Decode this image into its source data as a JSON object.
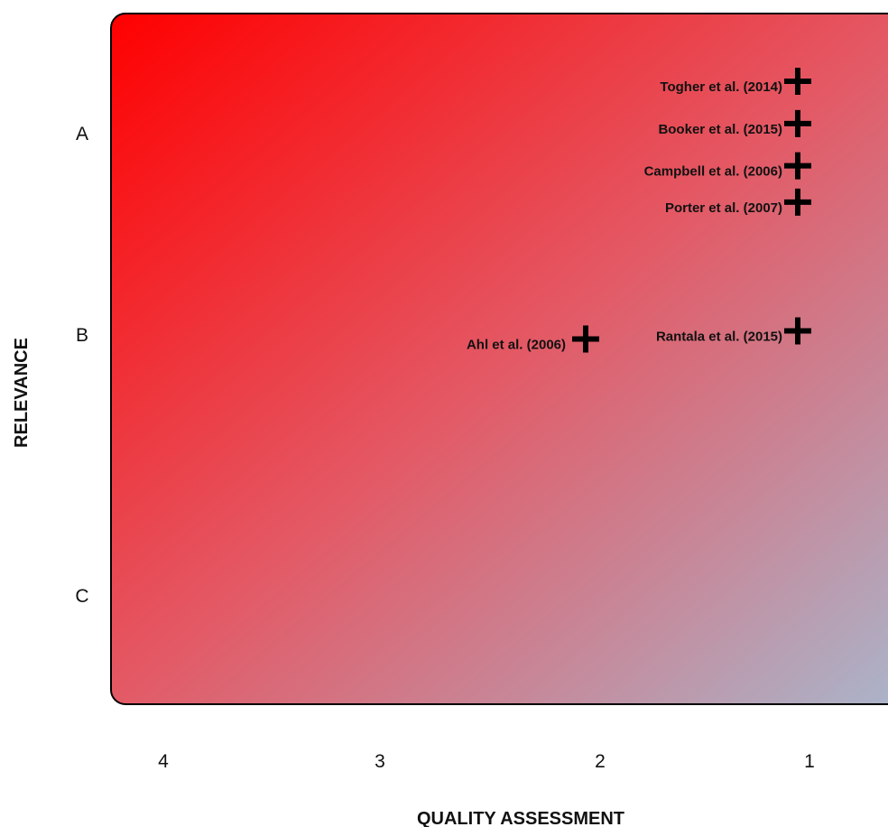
{
  "chart_data": {
    "type": "scatter",
    "xlabel": "QUALITY ASSESSMENT",
    "ylabel": "RELEVANCE",
    "x_ticks": [
      "4",
      "3",
      "2",
      "1"
    ],
    "y_ticks": [
      "A",
      "B",
      "C"
    ],
    "x_direction": "descending",
    "grid": false,
    "background_gradient": {
      "from_color": "#ff0000",
      "mid_color": "#e35a66",
      "to_color": "#a9b7cd",
      "direction": "top-left to bottom-right"
    },
    "marker": "plus",
    "marker_color": "#000000",
    "points": [
      {
        "label": "Togher et al. (2014)",
        "x": 1,
        "y": "A",
        "y_offset": -0.26
      },
      {
        "label": "Booker et al. (2015)",
        "x": 1,
        "y": "A",
        "y_offset": -0.05
      },
      {
        "label": "Campbell et al. (2006)",
        "x": 1,
        "y": "A",
        "y_offset": 0.16
      },
      {
        "label": "Porter et al. (2007)",
        "x": 1,
        "y": "A",
        "y_offset": 0.34
      },
      {
        "label": "Ahl et al. (2006)",
        "x": 2,
        "y": "B",
        "y_offset": 0.02
      },
      {
        "label": "Rantala et al. (2015)",
        "x": 1,
        "y": "B",
        "y_offset": -0.02
      }
    ]
  }
}
